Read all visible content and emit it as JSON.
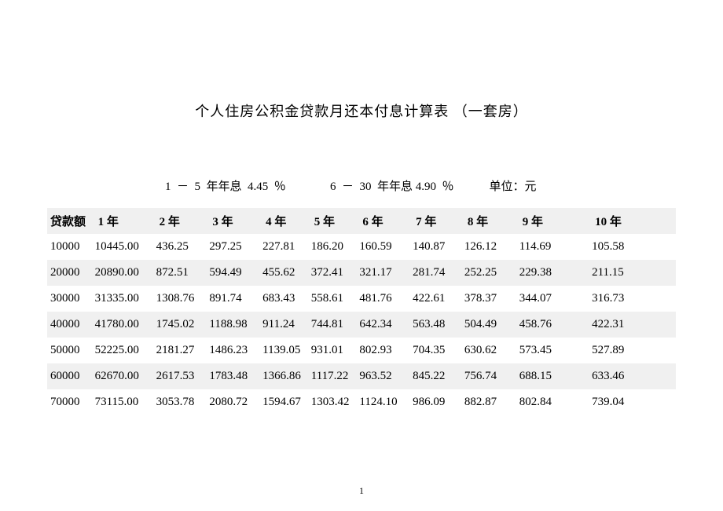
{
  "title": "个人住房公积金贷款月还本付息计算表 （一套房）",
  "rate_line": "1  －  5  年年息  4.45  ％               6  －  30  年年息 4.90  ％            单位：元",
  "page_number": "1",
  "table": {
    "columns": [
      "贷款额",
      "1 年",
      "2 年",
      "3 年",
      "4 年",
      "5 年",
      "6 年",
      "7 年",
      "8 年",
      "9 年",
      "10 年"
    ],
    "col_classes": [
      "c-loan",
      "c-y1",
      "c-y2",
      "c-y3",
      "c-y4",
      "c-y5",
      "c-y6",
      "c-y7",
      "c-y8",
      "c-y9",
      "c-y10"
    ],
    "rows": [
      [
        "10000",
        "10445.00",
        "436.25",
        "297.25",
        "227.81",
        "186.20",
        "160.59",
        "140.87",
        "126.12",
        "114.69",
        "105.58"
      ],
      [
        "20000",
        "20890.00",
        "872.51",
        "594.49",
        "455.62",
        "372.41",
        "321.17",
        "281.74",
        "252.25",
        "229.38",
        "211.15"
      ],
      [
        "30000",
        "31335.00",
        "1308.76",
        "891.74",
        "683.43",
        "558.61",
        "481.76",
        "422.61",
        "378.37",
        "344.07",
        "316.73"
      ],
      [
        "40000",
        "41780.00",
        "1745.02",
        "1188.98",
        "911.24",
        "744.81",
        "642.34",
        "563.48",
        "504.49",
        "458.76",
        "422.31"
      ],
      [
        "50000",
        "52225.00",
        "2181.27",
        "1486.23",
        "1139.05",
        "931.01",
        "802.93",
        "704.35",
        "630.62",
        "573.45",
        "527.89"
      ],
      [
        "60000",
        "62670.00",
        "2617.53",
        "1783.48",
        "1366.86",
        "1117.22",
        "963.52",
        "845.22",
        "756.74",
        "688.15",
        "633.46"
      ],
      [
        "70000",
        "73115.00",
        "3053.78",
        "2080.72",
        "1594.67",
        "1303.42",
        "1124.10",
        "986.09",
        "882.87",
        "802.84",
        "739.04"
      ]
    ],
    "header_bg": "#f0f0f0",
    "row_alt_bg": "#f0f0f0",
    "row_bg": "#ffffff",
    "font_size": 15,
    "text_color": "#000000"
  },
  "background_color": "#ffffff"
}
